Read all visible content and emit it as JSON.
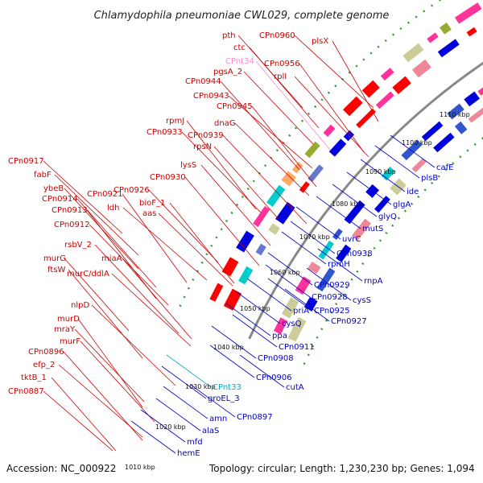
{
  "title": "Chlamydophila pneumoniae CWL029, complete genome",
  "footer": {
    "accession": "Accession: NC_000922",
    "summary": "Topology: circular; Length: 1,230,230 bp; Genes: 1,094"
  },
  "colors": {
    "forward_label": "#cc0000",
    "reverse_label": "#0000cc",
    "rna_label": "#ff88cc",
    "cyan_label": "#00aacc",
    "backbone": "#888888",
    "tick_dots": "#339933",
    "cog_magenta": "#ff3399",
    "cog_cyan": "#00cccc",
    "cog_olive": "#99aa33",
    "cog_khaki": "#cccc99"
  },
  "scale_labels": [
    "1010 kbp",
    "1020 kbp",
    "1030 kbp",
    "1040 kbp",
    "1050 kbp",
    "1060 kbp",
    "1070 kbp",
    "1080 kbp",
    "1090 kbp",
    "1100 kbp",
    "1110 kbp"
  ],
  "forward_genes": [
    "pth",
    "ctc",
    "CPnt34",
    "CPn0960",
    "plsX",
    "CPn0956",
    "pgsA_2",
    "rplI",
    "CPn0944",
    "CPn0943",
    "CPn0945",
    "rpmJ",
    "dnaG",
    "CPn0933",
    "CPn0939",
    "rpsN",
    "lysS",
    "CPn0930",
    "CPn0917",
    "fabF",
    "CPn0921",
    "CPn0926",
    "ybeB",
    "CPn0914",
    "ldh",
    "bioF_1",
    "CPn0913",
    "aas",
    "CPn0912",
    "rsbV_2",
    "murG",
    "miaA",
    "ftsW",
    "murC/ddlA",
    "nlpD",
    "murD",
    "mraY",
    "murF",
    "CPn0896",
    "efp_2",
    "tktB_1",
    "CPn0887"
  ],
  "reverse_genes": [
    "cafE",
    "plsB",
    "ide",
    "glgA",
    "glyQ",
    "mutS",
    "uvrC",
    "CPn0938",
    "rpmH",
    "rnpA",
    "CPn0929",
    "cysS",
    "CPn0928",
    "priA",
    "CPn0925",
    "CPn0927",
    "cysQ",
    "ppa",
    "CPn0911",
    "CPn0908",
    "CPn0906",
    "cutA",
    "CPnt33",
    "groEL_3",
    "CPn0897",
    "amn",
    "alaS",
    "mfd",
    "hemE"
  ]
}
